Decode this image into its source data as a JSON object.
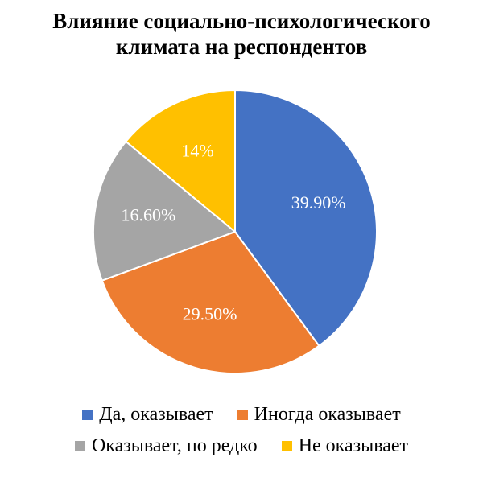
{
  "chart_data": {
    "type": "pie",
    "title": "Влияние социально-психологического климата на респондентов",
    "categories": [
      "Да, оказывает",
      "Иногда оказывает",
      "Оказывает, но редко",
      "Не оказывает"
    ],
    "values": [
      39.9,
      29.5,
      16.6,
      14
    ],
    "value_labels": [
      "39.90%",
      "29.50%",
      "16.60%",
      "14%"
    ],
    "colors": [
      "#4472c4",
      "#ed7d31",
      "#a5a5a5",
      "#ffc000"
    ],
    "legend": "bottom"
  }
}
